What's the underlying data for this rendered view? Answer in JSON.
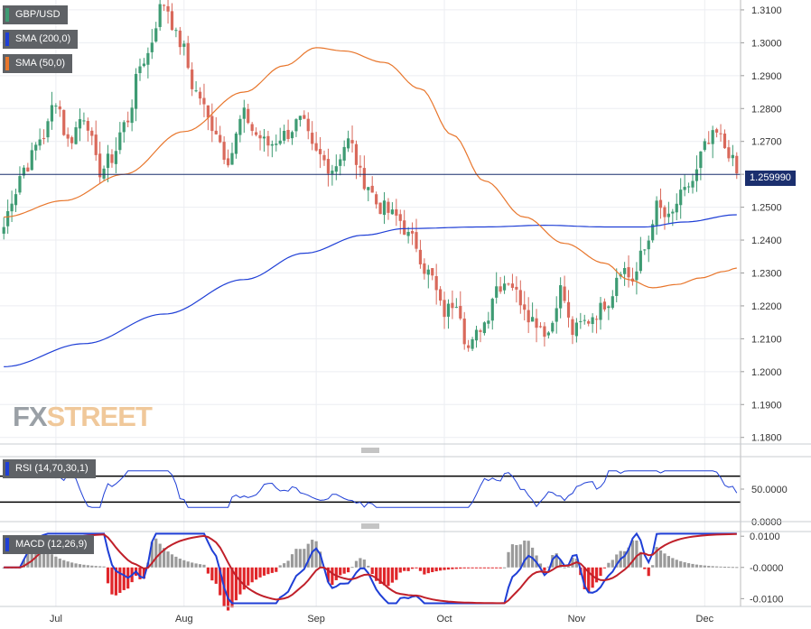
{
  "window": {
    "title": "GBP/USD"
  },
  "logo": {
    "part1": "FX",
    "part2": "STREET"
  },
  "indicators": {
    "sma200": {
      "label": "SMA (200,0)",
      "color": "#1f3fd6"
    },
    "sma50": {
      "label": "SMA (50,0)",
      "color": "#e8762c"
    },
    "rsi": {
      "label": "RSI (14,70,30,1)",
      "color": "#1f3fd6"
    },
    "macd": {
      "label": "MACD (12,26,9)",
      "macd_color": "#1f3fd6",
      "signal_color": "#c0202a"
    }
  },
  "current_price": {
    "label": "1.259990",
    "value": 1.25999
  },
  "colors": {
    "up": "#3e9b73",
    "down": "#d9695b",
    "grid": "#eceef2",
    "hist_pos": "#9a9a9a",
    "hist_neg": "#e0262a"
  },
  "chart_data": [
    {
      "type": "candlestick",
      "title": "GBP/USD",
      "x_ticks": [
        "Jul",
        "Aug",
        "Sep",
        "Oct",
        "Nov",
        "Dec"
      ],
      "y_ticks": [
        "1.3100",
        "1.3000",
        "1.2900",
        "1.2800",
        "1.2700",
        "1.2600",
        "1.2500",
        "1.2400",
        "1.2300",
        "1.2200",
        "1.2100",
        "1.2000",
        "1.1900",
        "1.1800"
      ],
      "ylim": [
        1.178,
        1.313
      ],
      "close_anchors": [
        [
          0,
          1.244
        ],
        [
          2,
          1.253
        ],
        [
          5,
          1.262
        ],
        [
          10,
          1.272
        ],
        [
          13,
          1.283
        ],
        [
          16,
          1.27
        ],
        [
          20,
          1.278
        ],
        [
          24,
          1.261
        ],
        [
          27,
          1.265
        ],
        [
          30,
          1.275
        ],
        [
          35,
          1.295
        ],
        [
          40,
          1.312
        ],
        [
          44,
          1.3
        ],
        [
          48,
          1.285
        ],
        [
          52,
          1.275
        ],
        [
          56,
          1.265
        ],
        [
          60,
          1.278
        ],
        [
          63,
          1.272
        ],
        [
          66,
          1.269
        ],
        [
          70,
          1.272
        ],
        [
          74,
          1.276
        ],
        [
          78,
          1.266
        ],
        [
          82,
          1.262
        ],
        [
          86,
          1.27
        ],
        [
          90,
          1.258
        ],
        [
          94,
          1.25
        ],
        [
          98,
          1.247
        ],
        [
          102,
          1.24
        ],
        [
          106,
          1.23
        ],
        [
          110,
          1.218
        ],
        [
          113,
          1.222
        ],
        [
          116,
          1.207
        ],
        [
          120,
          1.215
        ],
        [
          123,
          1.226
        ],
        [
          126,
          1.228
        ],
        [
          129,
          1.222
        ],
        [
          132,
          1.216
        ],
        [
          136,
          1.212
        ],
        [
          139,
          1.225
        ],
        [
          142,
          1.212
        ],
        [
          145,
          1.215
        ],
        [
          148,
          1.218
        ],
        [
          151,
          1.222
        ],
        [
          154,
          1.232
        ],
        [
          157,
          1.228
        ],
        [
          160,
          1.237
        ],
        [
          163,
          1.25
        ],
        [
          166,
          1.246
        ],
        [
          169,
          1.253
        ],
        [
          172,
          1.258
        ],
        [
          175,
          1.268
        ],
        [
          178,
          1.272
        ],
        [
          181,
          1.267
        ],
        [
          183,
          1.26
        ]
      ],
      "sma50_anchors": [
        [
          0,
          1.247
        ],
        [
          15,
          1.252
        ],
        [
          30,
          1.26
        ],
        [
          45,
          1.273
        ],
        [
          60,
          1.285
        ],
        [
          70,
          1.293
        ],
        [
          78,
          1.2985
        ],
        [
          85,
          1.2975
        ],
        [
          95,
          1.294
        ],
        [
          104,
          1.286
        ],
        [
          112,
          1.272
        ],
        [
          120,
          1.258
        ],
        [
          130,
          1.247
        ],
        [
          140,
          1.239
        ],
        [
          150,
          1.233
        ],
        [
          156,
          1.228
        ],
        [
          162,
          1.2255
        ],
        [
          168,
          1.2265
        ],
        [
          174,
          1.2285
        ],
        [
          180,
          1.2305
        ],
        [
          183,
          1.2315
        ]
      ],
      "sma200_anchors": [
        [
          0,
          1.2015
        ],
        [
          20,
          1.2085
        ],
        [
          40,
          1.2175
        ],
        [
          60,
          1.228
        ],
        [
          75,
          1.236
        ],
        [
          90,
          1.2415
        ],
        [
          100,
          1.2435
        ],
        [
          120,
          1.244
        ],
        [
          135,
          1.2445
        ],
        [
          150,
          1.244
        ],
        [
          160,
          1.244
        ],
        [
          170,
          1.2455
        ],
        [
          183,
          1.2477
        ]
      ]
    },
    {
      "type": "line",
      "title": "RSI (14,70,30,1)",
      "y_ticks": [
        "50.0000",
        "0.0000"
      ],
      "ylim": [
        0,
        100
      ]
    },
    {
      "type": "bar+line",
      "title": "MACD (12,26,9)",
      "y_ticks": [
        "0.0100",
        "-0.0000",
        "-0.0100"
      ],
      "ylim": [
        -0.0125,
        0.0115
      ]
    }
  ]
}
